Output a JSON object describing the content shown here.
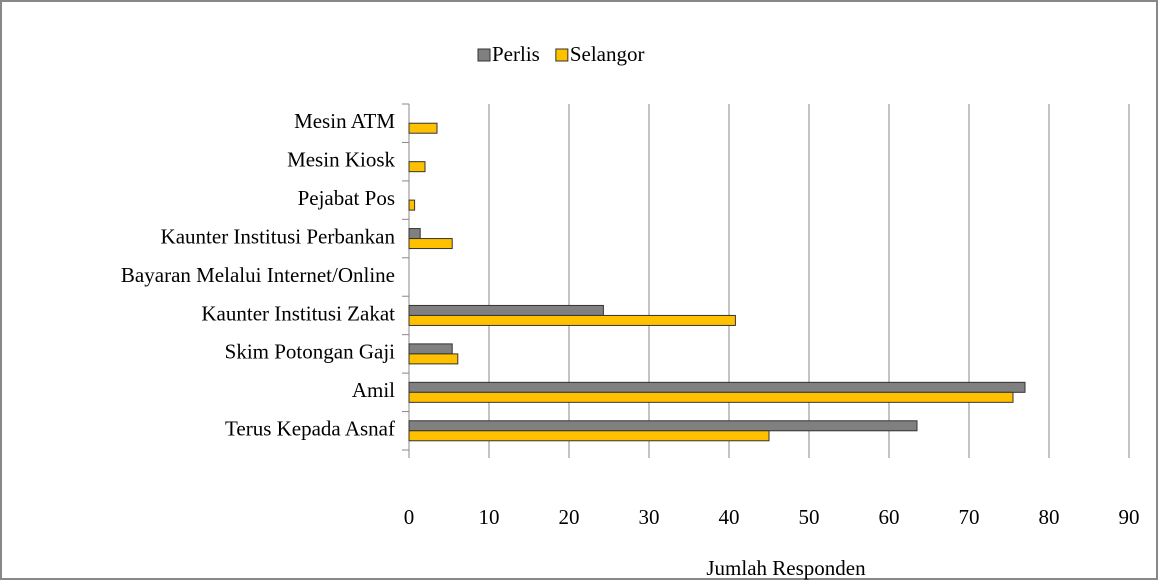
{
  "chart_data": {
    "type": "hbar",
    "categories": [
      "Mesin ATM",
      "Mesin Kiosk",
      "Pejabat Pos",
      "Kaunter Institusi Perbankan",
      "Bayaran Melalui Internet/Online",
      "Kaunter Institusi Zakat",
      "Skim Potongan Gaji",
      "Amil",
      "Terus Kepada Asnaf"
    ],
    "series": [
      {
        "name": "Perlis",
        "color": "#808080",
        "values": [
          0,
          0,
          0,
          1.4,
          0,
          24.3,
          5.4,
          77,
          63.5
        ]
      },
      {
        "name": "Selangor",
        "color": "#FFC000",
        "values": [
          3.5,
          2,
          0.7,
          5.4,
          0,
          40.8,
          6.1,
          75.5,
          45
        ]
      }
    ],
    "xlabel": "Jumlah Responden",
    "xlim": [
      0,
      90
    ],
    "xticks": [
      0,
      10,
      20,
      30,
      40,
      50,
      60,
      70,
      80,
      90
    ],
    "grid": true,
    "legend": "top"
  }
}
